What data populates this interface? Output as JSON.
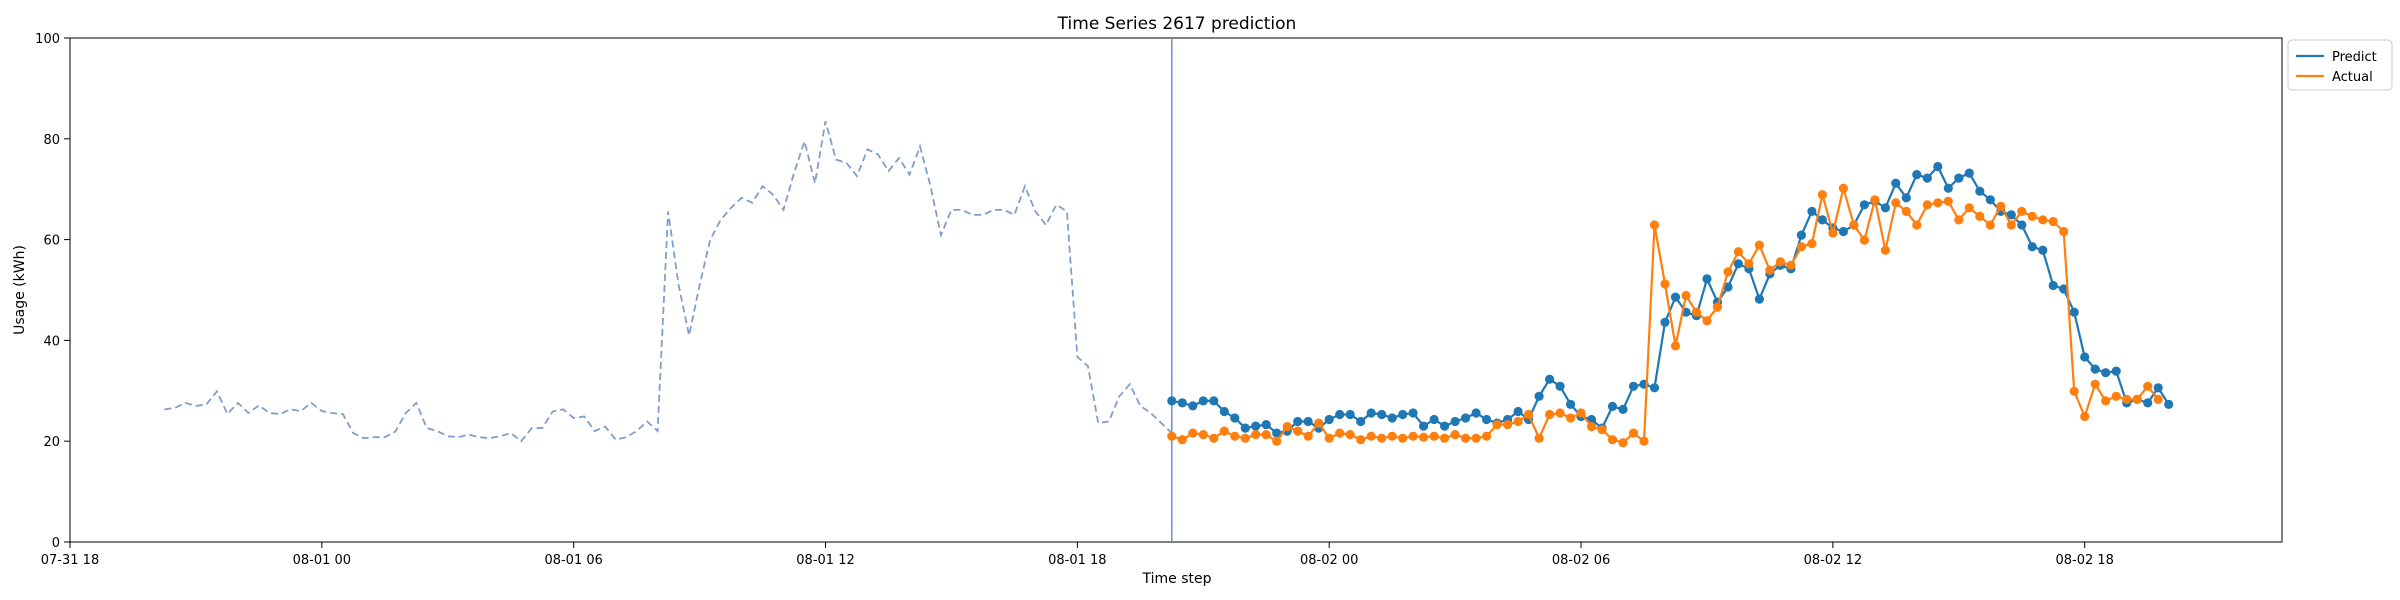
{
  "chart_data": {
    "type": "line",
    "title": "Time Series 2617 prediction",
    "xlabel": "Time step",
    "ylabel": "Usage (kWh)",
    "x_range": [
      "07-31 18",
      "08-02 22"
    ],
    "x_min_hours": 0,
    "x_max_hours": 52.7,
    "ylim": [
      0,
      100
    ],
    "y_ticks": [
      0,
      20,
      40,
      60,
      80,
      100
    ],
    "x_ticks": [
      {
        "label": "07-31 18",
        "hours": 0
      },
      {
        "label": "08-01 00",
        "hours": 6
      },
      {
        "label": "08-01 06",
        "hours": 12
      },
      {
        "label": "08-01 12",
        "hours": 18
      },
      {
        "label": "08-01 18",
        "hours": 24
      },
      {
        "label": "08-02 00",
        "hours": 30
      },
      {
        "label": "08-02 06",
        "hours": 36
      },
      {
        "label": "08-02 12",
        "hours": 42
      },
      {
        "label": "08-02 18",
        "hours": 48
      }
    ],
    "forecast_start_hours": 26.25,
    "legend_position": "upper right (outside plot)",
    "colors": {
      "history": "#7f9fcb",
      "predict": "#1f77b4",
      "actual": "#ff7f0e",
      "vline": "#6f8fc8"
    },
    "history": {
      "start_hours": 2.25,
      "step_hours": 0.25,
      "values": [
        26.3,
        26.6,
        27.6,
        27.0,
        27.3,
        29.9,
        25.4,
        27.6,
        25.6,
        27.1,
        25.6,
        25.4,
        26.3,
        26.0,
        27.6,
        26.0,
        25.6,
        25.4,
        21.6,
        20.6,
        20.8,
        20.8,
        21.9,
        25.6,
        27.6,
        22.6,
        22.0,
        21.0,
        20.8,
        21.3,
        20.8,
        20.6,
        21.0,
        21.6,
        20.0,
        22.6,
        22.6,
        25.9,
        26.3,
        24.6,
        24.9,
        22.0,
        22.9,
        20.3,
        20.8,
        22.0,
        23.9,
        22.0,
        65.6,
        51.0,
        41.0,
        51.0,
        59.9,
        63.9,
        66.3,
        68.3,
        67.3,
        70.6,
        68.9,
        65.9,
        73.2,
        79.5,
        71.2,
        83.5,
        75.9,
        75.2,
        72.6,
        77.9,
        76.9,
        73.6,
        76.2,
        72.9,
        78.5,
        70.6,
        60.9,
        65.9,
        65.9,
        64.9,
        64.9,
        65.9,
        65.9,
        64.9,
        70.6,
        65.6,
        62.9,
        66.9,
        65.6,
        36.7,
        34.9,
        23.6,
        23.9,
        28.9,
        31.3,
        27.0,
        25.6,
        23.6,
        21.6
      ]
    },
    "predict": {
      "start_hours": 26.25,
      "step_hours": 0.25,
      "values": [
        28.0,
        27.6,
        27.0,
        28.0,
        28.0,
        25.9,
        24.6,
        22.6,
        23.0,
        23.3,
        21.6,
        22.0,
        23.9,
        23.9,
        22.6,
        24.3,
        25.3,
        25.3,
        23.9,
        25.6,
        25.3,
        24.6,
        25.3,
        25.6,
        23.0,
        24.3,
        23.0,
        23.9,
        24.6,
        25.6,
        24.3,
        23.6,
        24.3,
        25.9,
        24.3,
        28.9,
        32.3,
        30.9,
        27.3,
        24.9,
        24.3,
        22.6,
        26.9,
        26.3,
        30.9,
        31.3,
        30.6,
        43.6,
        48.6,
        45.6,
        44.9,
        52.2,
        47.6,
        50.6,
        55.2,
        54.2,
        48.2,
        53.2,
        54.9,
        54.2,
        60.9,
        65.6,
        63.9,
        62.3,
        61.6,
        62.9,
        66.9,
        67.6,
        66.3,
        71.2,
        68.3,
        72.9,
        72.2,
        74.5,
        70.2,
        72.2,
        73.2,
        69.6,
        67.9,
        65.6,
        64.9,
        62.9,
        58.6,
        57.9,
        50.9,
        50.2,
        45.6,
        36.7,
        34.3,
        33.6,
        33.9,
        27.6,
        28.3,
        27.6,
        30.6,
        27.3
      ]
    },
    "actual": {
      "start_hours": 26.25,
      "step_hours": 0.25,
      "values": [
        21.0,
        20.3,
        21.6,
        21.3,
        20.6,
        22.0,
        21.0,
        20.6,
        21.3,
        21.3,
        20.0,
        22.9,
        22.0,
        21.0,
        23.6,
        20.6,
        21.6,
        21.3,
        20.3,
        21.0,
        20.6,
        21.0,
        20.6,
        21.0,
        20.8,
        21.0,
        20.6,
        21.3,
        20.6,
        20.6,
        21.0,
        23.3,
        23.3,
        23.9,
        25.3,
        20.6,
        25.3,
        25.6,
        24.6,
        25.6,
        22.9,
        22.3,
        20.3,
        19.7,
        21.6,
        20.0,
        62.9,
        51.2,
        38.9,
        48.9,
        45.6,
        43.9,
        46.6,
        53.6,
        57.6,
        55.2,
        58.9,
        53.9,
        55.6,
        54.9,
        58.6,
        59.2,
        68.9,
        61.3,
        70.2,
        62.9,
        59.9,
        67.9,
        57.9,
        67.3,
        65.6,
        62.9,
        66.9,
        67.3,
        67.6,
        63.9,
        66.3,
        64.6,
        62.9,
        66.6,
        62.9,
        65.6,
        64.6,
        63.9,
        63.6,
        61.6,
        29.9,
        24.9,
        31.3,
        28.0,
        28.9,
        28.3,
        28.3,
        30.9,
        28.3
      ]
    },
    "legend": [
      {
        "label": "Predict",
        "color": "#1f77b4"
      },
      {
        "label": "Actual",
        "color": "#ff7f0e"
      }
    ]
  }
}
